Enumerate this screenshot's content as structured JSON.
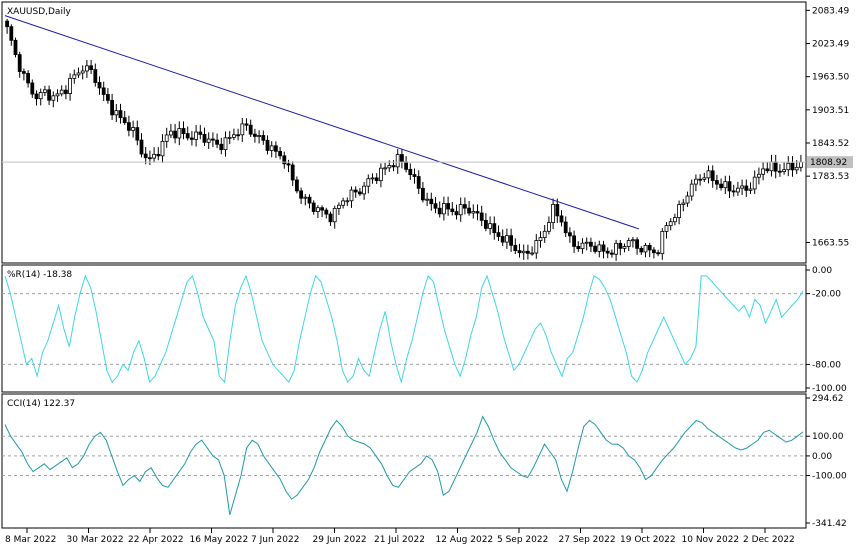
{
  "chart_data": [
    {
      "panel": "price",
      "type": "candlestick",
      "title": "XAUUSD,Daily",
      "current_price": "1808.92",
      "ylim": [
        1630,
        2095
      ],
      "y_ticks": [
        "2083.49",
        "2023.49",
        "1963.50",
        "1903.51",
        "1843.52",
        "1783.53",
        "1663.55"
      ],
      "x_ticks": [
        "8 Mar 2022",
        "30 Mar 2022",
        "22 Apr 2022",
        "16 May 2022",
        "7 Jun 2022",
        "29 Jun 2022",
        "21 Jul 2022",
        "12 Aug 2022",
        "5 Sep 2022",
        "27 Sep 2022",
        "19 Oct 2022",
        "10 Nov 2022",
        "2 Dec 2022"
      ],
      "close_anchors": [
        2050,
        1990,
        1950,
        1930,
        1940,
        1925,
        1935,
        1960,
        1985,
        1975,
        1930,
        1900,
        1880,
        1875,
        1835,
        1810,
        1830,
        1860,
        1865,
        1860,
        1858,
        1845,
        1835,
        1850,
        1870,
        1875,
        1850,
        1840,
        1830,
        1820,
        1770,
        1735,
        1725,
        1720,
        1715,
        1740,
        1745,
        1755,
        1780,
        1795,
        1805,
        1810,
        1790,
        1765,
        1740,
        1725,
        1720,
        1715,
        1730,
        1720,
        1700,
        1675,
        1665,
        1658,
        1645,
        1655,
        1670,
        1720,
        1705,
        1665,
        1660,
        1655,
        1645,
        1648,
        1660,
        1668,
        1650,
        1645,
        1648,
        1705,
        1715,
        1745,
        1770,
        1790,
        1780,
        1765,
        1755,
        1755,
        1770,
        1805,
        1800,
        1790,
        1795,
        1808.92
      ],
      "trendline": {
        "from": [
          "8 Mar 2022",
          2074
        ],
        "to": [
          "19 Oct 2022",
          1688
        ]
      }
    },
    {
      "panel": "williams_r",
      "type": "line",
      "title": "%R(14) -18.38",
      "ylim": [
        -100,
        0
      ],
      "y_ticks": [
        "0.00",
        "-20.00",
        "-80.00",
        "-100.00"
      ],
      "levels": [
        -20,
        -80
      ],
      "values": [
        -5,
        -20,
        -40,
        -60,
        -80,
        -75,
        -90,
        -70,
        -60,
        -45,
        -30,
        -50,
        -65,
        -40,
        -20,
        -5,
        -15,
        -35,
        -60,
        -85,
        -95,
        -90,
        -80,
        -85,
        -70,
        -60,
        -75,
        -95,
        -90,
        -80,
        -70,
        -55,
        -40,
        -25,
        -10,
        -5,
        -20,
        -40,
        -50,
        -60,
        -90,
        -95,
        -60,
        -30,
        -15,
        -5,
        -20,
        -40,
        -60,
        -70,
        -80,
        -85,
        -90,
        -95,
        -85,
        -60,
        -40,
        -20,
        -5,
        -10,
        -25,
        -40,
        -60,
        -85,
        -95,
        -90,
        -75,
        -85,
        -90,
        -70,
        -50,
        -35,
        -60,
        -80,
        -95,
        -75,
        -60,
        -40,
        -20,
        -5,
        -10,
        -30,
        -50,
        -65,
        -80,
        -90,
        -75,
        -55,
        -40,
        -15,
        -5,
        -20,
        -35,
        -55,
        -70,
        -85,
        -80,
        -70,
        -60,
        -50,
        -45,
        -55,
        -70,
        -80,
        -90,
        -75,
        -70,
        -55,
        -40,
        -20,
        -5,
        -8,
        -15,
        -25,
        -40,
        -55,
        -70,
        -90,
        -95,
        -85,
        -70,
        -60,
        -50,
        -40,
        -50,
        -60,
        -70,
        -80,
        -75,
        -65,
        -5,
        -5,
        -10,
        -15,
        -20,
        -25,
        -30,
        -35,
        -30,
        -40,
        -25,
        -30,
        -45,
        -35,
        -25,
        -40,
        -35,
        -30,
        -25,
        -18
      ]
    },
    {
      "panel": "cci",
      "type": "line",
      "title": "CCI(14) 122.37",
      "ylim": [
        -341.42,
        294.62
      ],
      "y_ticks": [
        "294.62",
        "100.00",
        "0.00",
        "-100.00",
        "-341.42"
      ],
      "levels": [
        100,
        0,
        -100
      ],
      "values": [
        160,
        100,
        60,
        20,
        -40,
        -80,
        -60,
        -40,
        -70,
        -50,
        -30,
        -10,
        -60,
        -40,
        0,
        60,
        100,
        120,
        80,
        0,
        -80,
        -150,
        -120,
        -100,
        -130,
        -80,
        -60,
        -110,
        -150,
        -160,
        -120,
        -80,
        -40,
        20,
        60,
        80,
        40,
        0,
        -20,
        -100,
        -300,
        -200,
        -100,
        40,
        80,
        60,
        0,
        -40,
        -80,
        -120,
        -180,
        -220,
        -200,
        -160,
        -120,
        -60,
        20,
        80,
        140,
        180,
        150,
        100,
        80,
        70,
        60,
        40,
        0,
        -40,
        -100,
        -150,
        -160,
        -120,
        -80,
        -60,
        -40,
        0,
        -20,
        -80,
        -200,
        -180,
        -120,
        -60,
        0,
        60,
        120,
        200,
        150,
        80,
        20,
        -20,
        -60,
        -80,
        -100,
        -110,
        -60,
        0,
        60,
        20,
        -20,
        -120,
        -180,
        -80,
        40,
        150,
        180,
        160,
        120,
        80,
        60,
        60,
        40,
        0,
        -20,
        -60,
        -120,
        -100,
        -60,
        -20,
        10,
        40,
        80,
        120,
        150,
        180,
        170,
        140,
        120,
        100,
        80,
        60,
        40,
        30,
        40,
        60,
        80,
        120,
        130,
        110,
        90,
        70,
        80,
        100,
        122
      ]
    }
  ]
}
